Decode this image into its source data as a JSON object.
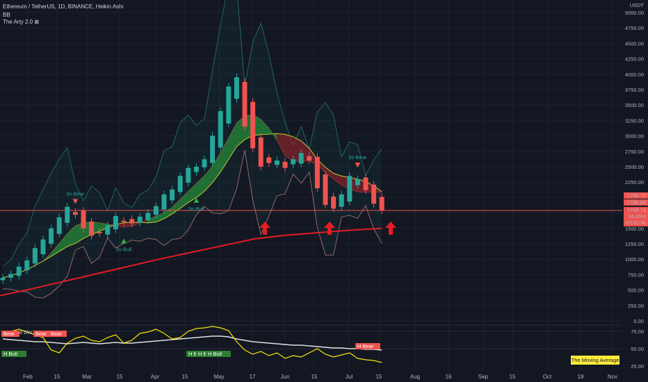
{
  "legend": {
    "title": "Ethereum / TetherUS, 1D, BINANCE, Heikin Ashi",
    "indicator1": "BB",
    "indicator2": "The Arty 2.0 ⊠"
  },
  "axis": {
    "unit": "USDT"
  },
  "price_tags": {
    "high": "1790.70",
    "close": "1788.84",
    "last": "1788.73",
    "pct": "34.65%",
    "countdown": "02:32:36"
  },
  "note": "The Moving Average",
  "colors": {
    "bull": "#26a69a",
    "bear": "#ef5350",
    "background": "#131722",
    "ma200": "#e51c23",
    "rsi": "#f5e609"
  },
  "chart_data": [
    {
      "type": "candlestick",
      "title": "Ethereum / TetherUS, 1D, BINANCE, Heikin Ashi",
      "ylabel": "USDT",
      "ylim": [
        0,
        5000
      ],
      "y_ticks": [
        "5000.00",
        "4750.00",
        "4500.00",
        "4250.00",
        "4000.00",
        "3750.00",
        "3500.00",
        "3250.00",
        "3000.00",
        "2750.00",
        "2500.00",
        "2250.00",
        "1500.00",
        "1250.00",
        "1000.00",
        "750.00",
        "500.00",
        "250.00",
        "0.00"
      ],
      "x_ticks": [
        "Feb",
        "15",
        "Mar",
        "15",
        "Apr",
        "15",
        "May",
        "17",
        "Jun",
        "15",
        "Jul",
        "15",
        "Aug",
        "16",
        "Sep",
        "15",
        "Oct",
        "18",
        "Nov"
      ],
      "close_series": [
        700,
        760,
        880,
        980,
        1180,
        1320,
        1500,
        1680,
        1850,
        1720,
        1500,
        1380,
        1420,
        1550,
        1700,
        1600,
        1580,
        1690,
        1750,
        1860,
        2050,
        2130,
        2350,
        2480,
        2500,
        2620,
        3000,
        3400,
        3800,
        3950,
        3150,
        2800,
        2500,
        2560,
        2600,
        2480,
        2620,
        2720,
        2600,
        2150,
        1880,
        1820,
        2050,
        2350,
        2300,
        2120,
        1900,
        1790
      ],
      "resistance_level": 1790,
      "ma200": [
        410,
        520,
        640,
        760,
        880,
        1000,
        1110,
        1220,
        1330,
        1390,
        1430,
        1470,
        1500
      ],
      "signals": [
        {
          "label": "3s-Bear",
          "price": 1830
        },
        {
          "label": "3s-Bull",
          "price": 1380
        },
        {
          "label": "3s-Bull",
          "price": 2040
        },
        {
          "label": "3s-Bear",
          "price": 2420
        }
      ]
    },
    {
      "type": "line",
      "title": "MA - RSI DIV",
      "ylim": [
        25,
        85
      ],
      "y_ticks": [
        "75.00",
        "50.00",
        "25.00"
      ],
      "series": [
        {
          "values": [
            68,
            75,
            78,
            74,
            70,
            66,
            48,
            44,
            58,
            65,
            68,
            62,
            60,
            66,
            70,
            58,
            62,
            72,
            74,
            78,
            72,
            64,
            66,
            75,
            79,
            80,
            82,
            80,
            76,
            60,
            48,
            42,
            46,
            40,
            44,
            36,
            40,
            38,
            44,
            50,
            42,
            38,
            41,
            44,
            36,
            34,
            33,
            30
          ]
        },
        {
          "values": [
            64,
            63,
            62,
            61,
            60,
            60,
            59,
            58,
            57,
            58,
            59,
            58,
            57,
            58,
            59,
            58,
            58,
            59,
            60,
            61,
            62,
            63,
            64,
            65,
            66,
            67,
            68,
            68,
            67,
            64,
            62,
            60,
            59,
            58,
            57,
            56,
            55,
            55,
            54,
            53,
            52,
            51,
            51,
            50,
            50,
            49,
            49,
            48
          ]
        }
      ],
      "markers": [
        "Bear",
        "Bear",
        "Bear",
        "H Bull",
        "H Bull",
        "H Bull",
        "H Bull",
        "H Bear"
      ]
    }
  ]
}
